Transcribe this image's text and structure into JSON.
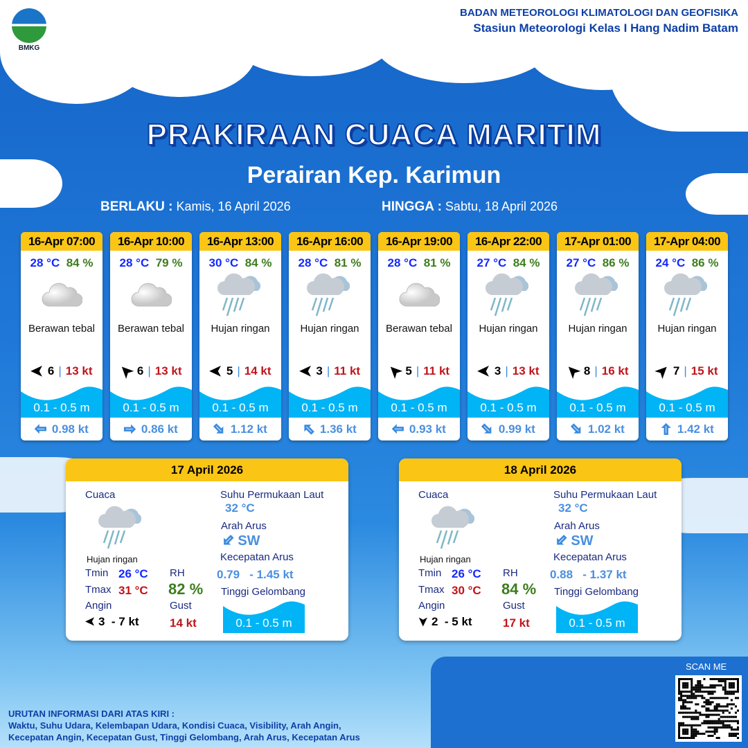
{
  "header": {
    "logo_text": "BMKG",
    "org_line1": "BADAN METEOROLOGI KLIMATOLOGI DAN GEOFISIKA",
    "org_line2": "Stasiun Meteorologi Kelas I Hang Nadim Batam"
  },
  "title": "PRAKIRAAN CUACA MARITIM",
  "subtitle": "Perairan Kep. Karimun",
  "validity": {
    "from_label": "BERLAKU :",
    "from_value": "Kamis, 16 April 2026",
    "to_label": "HINGGA :",
    "to_value": "Sabtu, 18 April 2026"
  },
  "colors": {
    "header_yellow": "#fbc515",
    "temp": "#1428ff",
    "humidity": "#3d7d1e",
    "gust": "#c0141c",
    "wave": "#00b4f5",
    "current": "#4a8fe0"
  },
  "forecasts": [
    {
      "time": "16-Apr 07:00",
      "temp": "28 °C",
      "rh": "84 %",
      "icon": "cloud-icon",
      "condition": "Berawan tebal",
      "wind_dir": "W",
      "wind": "6",
      "gust": "13 kt",
      "wave": "0.1 - 0.5 m",
      "current_dir": "W",
      "current": "0.98 kt"
    },
    {
      "time": "16-Apr 10:00",
      "temp": "28 °C",
      "rh": "79 %",
      "icon": "cloud-icon",
      "condition": "Berawan tebal",
      "wind_dir": "NW",
      "wind": "6",
      "gust": "13 kt",
      "wave": "0.1 - 0.5 m",
      "current_dir": "E",
      "current": "0.86 kt"
    },
    {
      "time": "16-Apr 13:00",
      "temp": "30 °C",
      "rh": "84 %",
      "icon": "rain-icon",
      "condition": "Hujan ringan",
      "wind_dir": "W",
      "wind": "5",
      "gust": "14 kt",
      "wave": "0.1 - 0.5 m",
      "current_dir": "SE",
      "current": "1.12 kt"
    },
    {
      "time": "16-Apr 16:00",
      "temp": "28 °C",
      "rh": "81 %",
      "icon": "rain-icon",
      "condition": "Hujan ringan",
      "wind_dir": "W",
      "wind": "3",
      "gust": "11 kt",
      "wave": "0.1 - 0.5 m",
      "current_dir": "NW",
      "current": "1.36 kt"
    },
    {
      "time": "16-Apr 19:00",
      "temp": "28 °C",
      "rh": "81 %",
      "icon": "cloud-icon",
      "condition": "Berawan tebal",
      "wind_dir": "NW",
      "wind": "5",
      "gust": "11 kt",
      "wave": "0.1 - 0.5 m",
      "current_dir": "W",
      "current": "0.93 kt"
    },
    {
      "time": "16-Apr 22:00",
      "temp": "27 °C",
      "rh": "84 %",
      "icon": "rain-icon",
      "condition": "Hujan ringan",
      "wind_dir": "W",
      "wind": "3",
      "gust": "13 kt",
      "wave": "0.1 - 0.5 m",
      "current_dir": "SE",
      "current": "0.99 kt"
    },
    {
      "time": "17-Apr 01:00",
      "temp": "27 °C",
      "rh": "86 %",
      "icon": "rain-icon",
      "condition": "Hujan ringan",
      "wind_dir": "NW",
      "wind": "8",
      "gust": "16 kt",
      "wave": "0.1 - 0.5 m",
      "current_dir": "SE",
      "current": "1.02 kt"
    },
    {
      "time": "17-Apr 04:00",
      "temp": "24 °C",
      "rh": "86 %",
      "icon": "rain-icon",
      "condition": "Hujan ringan",
      "wind_dir": "NE",
      "wind": "7",
      "gust": "15 kt",
      "wave": "0.1 - 0.5 m",
      "current_dir": "N",
      "current": "1.42 kt"
    }
  ],
  "labels": {
    "weather": "Cuaca",
    "tmin": "Tmin",
    "tmax": "Tmax",
    "wind": "Angin",
    "rh": "RH",
    "gust": "Gust",
    "sst": "Suhu Permukaan Laut",
    "current_dir": "Arah Arus",
    "current_speed": "Kecepatan Arus",
    "wave": "Tinggi Gelombang"
  },
  "daily": [
    {
      "date": "17 April 2026",
      "condition": "Hujan ringan",
      "tmin": "26 °C",
      "tmax": "31 °C",
      "wind_dir": "W",
      "wind": "3  - 7 kt",
      "rh": "82 %",
      "gust": "14 kt",
      "sst": "32 °C",
      "current_dir": "SW",
      "current_min": "0.79",
      "current_max": "- 1.45 kt",
      "wave": "0.1 - 0.5 m"
    },
    {
      "date": "18 April 2026",
      "condition": "Hujan ringan",
      "tmin": "26 °C",
      "tmax": "30 °C",
      "wind_dir": "S",
      "wind": "2  - 5 kt",
      "rh": "84 %",
      "gust": "17 kt",
      "sst": "32 °C",
      "current_dir": "SW",
      "current_min": "0.88",
      "current_max": "- 1.37 kt",
      "wave": "0.1 - 0.5 m"
    }
  ],
  "footer": {
    "line1": "URUTAN INFORMASI DARI ATAS KIRI :",
    "line2": "Waktu, Suhu Udara, Kelembapan Udara, Kondisi Cuaca, Visibility, Arah Angin,",
    "line3": "Kecepatan Angin, Kecepatan Gust, Tinggi Gelombang, Arah Arus, Kecepatan Arus"
  },
  "qr": {
    "label": "SCAN ME"
  }
}
